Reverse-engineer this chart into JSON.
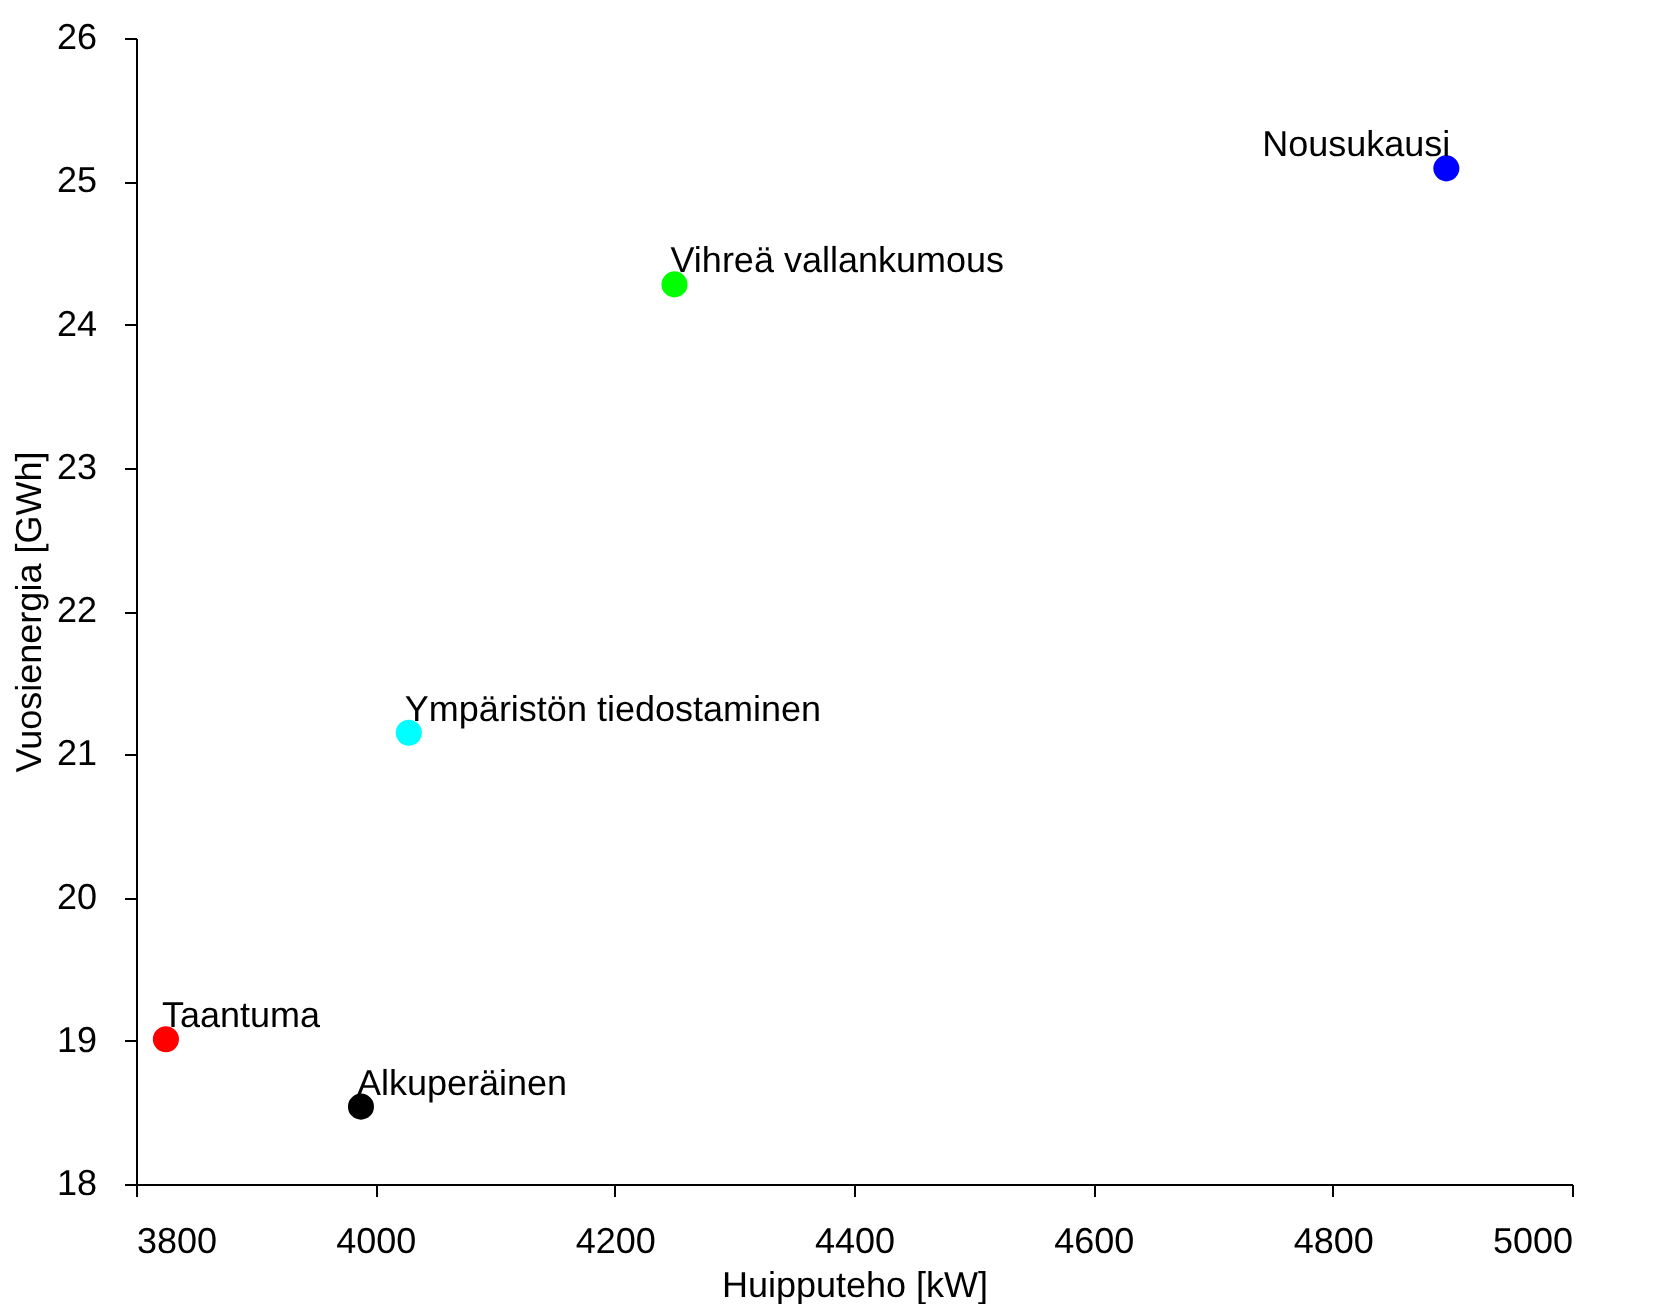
{
  "chart_data": {
    "type": "scatter",
    "xlabel": "Huipputeho [kW]",
    "ylabel": "Vuosienergia [GWh]",
    "xlim": [
      3800,
      5000
    ],
    "xticks": [
      3800,
      4000,
      4200,
      4400,
      4600,
      4800,
      5000
    ],
    "ylim": [
      18,
      26
    ],
    "yticks": [
      18,
      19,
      20,
      21,
      22,
      23,
      24,
      25,
      26
    ],
    "grid": false,
    "marker": "circle",
    "series": [
      {
        "name": "Nousukausi",
        "color": "#0000ff",
        "x": [
          4895
        ],
        "values": [
          25.09
        ]
      },
      {
        "name": "Vihreä vallankumous",
        "color": "#00ff00",
        "x": [
          4250
        ],
        "values": [
          24.28
        ]
      },
      {
        "name": "Ympäristön tiedostaminen",
        "color": "#00ffff",
        "x": [
          4028
        ],
        "values": [
          21.15
        ]
      },
      {
        "name": "Taantuma",
        "color": "#ff0000",
        "x": [
          3825
        ],
        "values": [
          19.01
        ]
      },
      {
        "name": "Alkuperäinen",
        "color": "#000000",
        "x": [
          3988
        ],
        "values": [
          18.54
        ]
      }
    ]
  }
}
